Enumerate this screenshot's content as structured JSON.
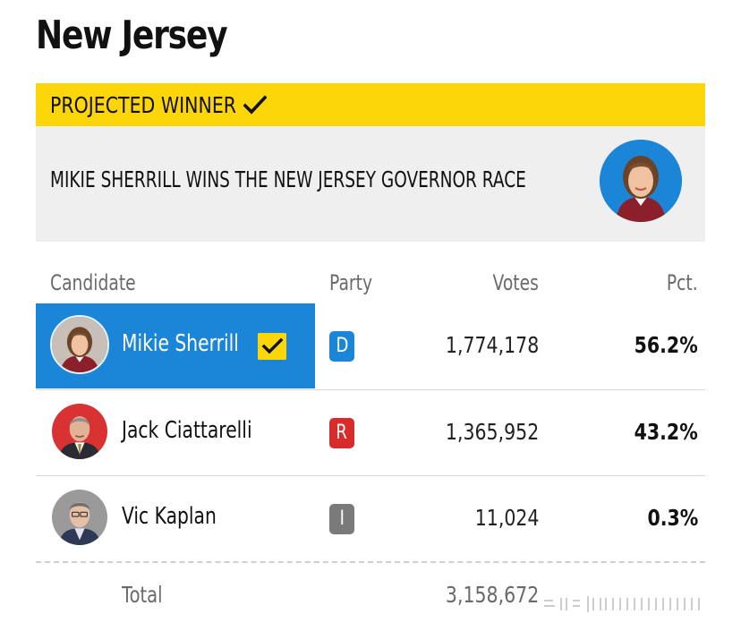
{
  "state_title": "New Jersey",
  "projected": {
    "label": "PROJECTED WINNER",
    "headline": "MIKIE SHERRILL WINS THE NEW JERSEY GOVERNOR RACE",
    "bar_color": "#fdd60a",
    "check_icon": "checkmark-icon",
    "photo_icon": "candidate-portrait"
  },
  "columns": {
    "candidate": "Candidate",
    "party": "Party",
    "votes": "Votes",
    "pct": "Pct."
  },
  "candidates": [
    {
      "name": "Mikie Sherrill",
      "party": "D",
      "party_color": "#1b86d8",
      "votes": "1,774,178",
      "pct": "56.2%",
      "winner": true
    },
    {
      "name": "Jack Ciattarelli",
      "party": "R",
      "party_color": "#d92b2b",
      "votes": "1,365,952",
      "pct": "43.2%",
      "winner": false
    },
    {
      "name": "Vic Kaplan",
      "party": "I",
      "party_color": "#7a7a7a",
      "votes": "11,024",
      "pct": "0.3%",
      "winner": false
    }
  ],
  "total": {
    "label": "Total",
    "votes": "3,158,672"
  },
  "colors": {
    "winner_highlight": "#1b86d8",
    "panel_bg": "#efefef"
  }
}
